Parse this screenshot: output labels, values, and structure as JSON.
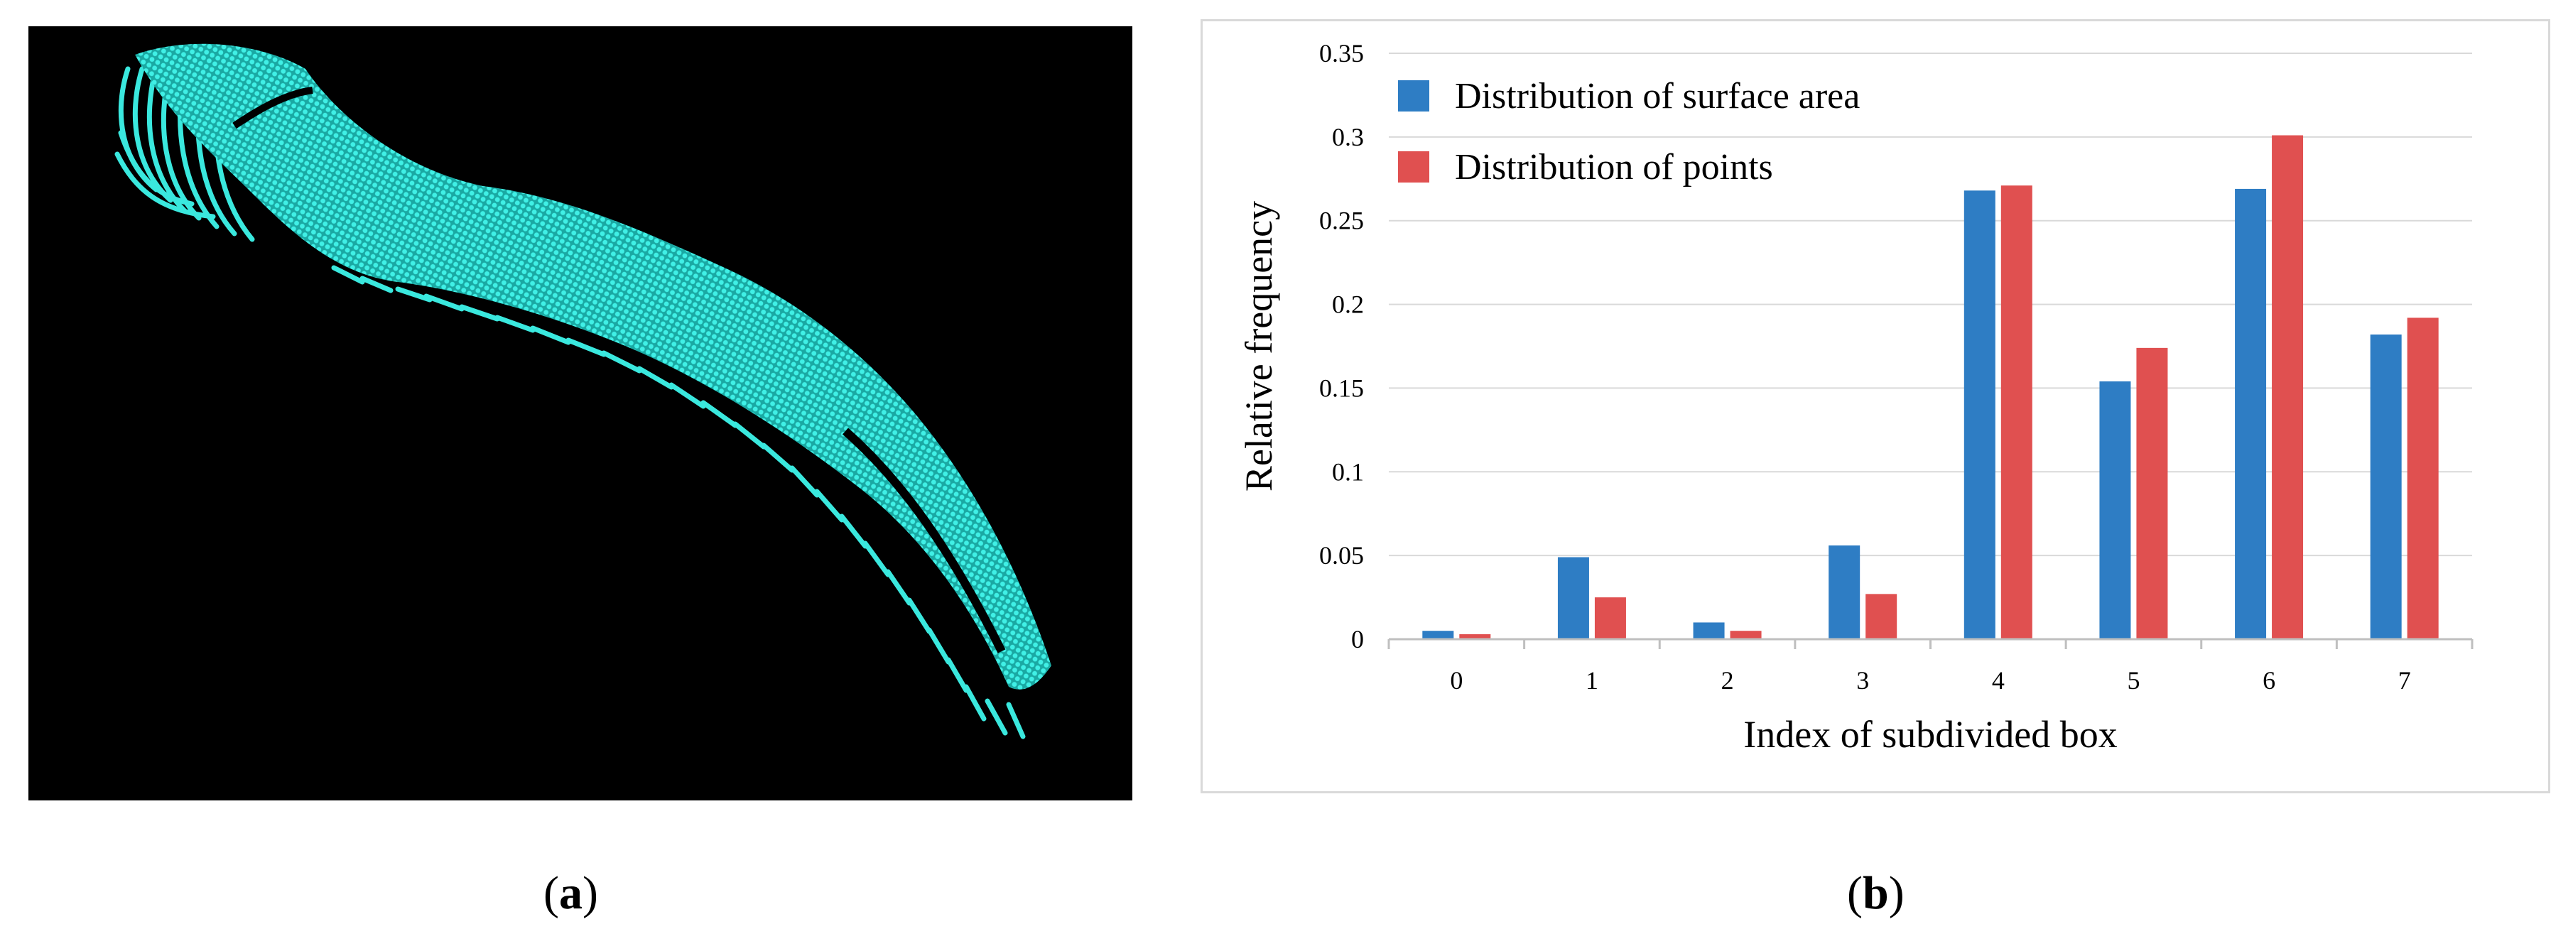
{
  "colors": {
    "point_cloud": "#33e6dc",
    "background_a": "#000000",
    "series_surface": "#2e7dc4",
    "series_points": "#e05050",
    "grid": "#d9d9d9",
    "axis": "#bfbfbf"
  },
  "captions": {
    "a": {
      "letter": "a"
    },
    "b": {
      "letter": "b"
    }
  },
  "panel_a": {
    "icon": "point-cloud-image",
    "description_visible": false
  },
  "chart_data": {
    "type": "bar",
    "title": "",
    "xlabel": "Index of subdivided box",
    "ylabel": "Relative frequency",
    "categories": [
      "0",
      "1",
      "2",
      "3",
      "4",
      "5",
      "6",
      "7"
    ],
    "ylim": [
      0,
      0.35
    ],
    "yticks": [
      0,
      0.05,
      0.1,
      0.15,
      0.2,
      0.25,
      0.3,
      0.35
    ],
    "ytick_labels": [
      "0",
      "0.05",
      "0.1",
      "0.15",
      "0.2",
      "0.25",
      "0.3",
      "0.35"
    ],
    "grid": true,
    "legend_position": "top-left",
    "series": [
      {
        "name": "Distribution of surface area",
        "color": "#2e7dc4",
        "values": [
          0.005,
          0.049,
          0.01,
          0.056,
          0.268,
          0.154,
          0.269,
          0.182
        ]
      },
      {
        "name": "Distribution of points",
        "color": "#e05050",
        "values": [
          0.003,
          0.025,
          0.005,
          0.027,
          0.271,
          0.174,
          0.301,
          0.192
        ]
      }
    ]
  }
}
